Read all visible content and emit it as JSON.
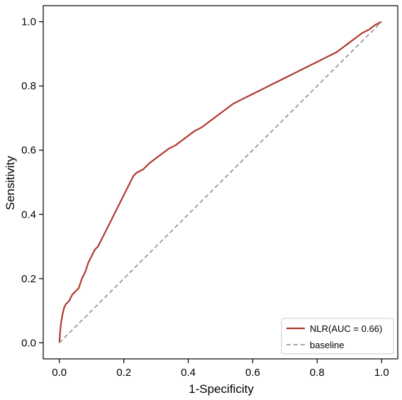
{
  "chart_data": {
    "type": "line",
    "xlabel": "1-Specificity",
    "ylabel": "Sensitivity",
    "xlim": [
      -0.05,
      1.05
    ],
    "ylim": [
      -0.05,
      1.05
    ],
    "xticks": [
      0.0,
      0.2,
      0.4,
      0.6,
      0.8,
      1.0
    ],
    "yticks": [
      0.0,
      0.2,
      0.4,
      0.6,
      0.8,
      1.0
    ],
    "xtick_labels": [
      "0.0",
      "0.2",
      "0.4",
      "0.6",
      "0.8",
      "1.0"
    ],
    "ytick_labels": [
      "0.0",
      "0.2",
      "0.4",
      "0.6",
      "0.8",
      "1.0"
    ],
    "grid": false,
    "legend_position": "bottom-right",
    "series": [
      {
        "name": "NLR(AUC = 0.66)",
        "color": "#b03a2e",
        "style": "solid",
        "x": [
          0.0,
          0.002,
          0.005,
          0.01,
          0.015,
          0.02,
          0.03,
          0.04,
          0.05,
          0.06,
          0.07,
          0.08,
          0.09,
          0.1,
          0.11,
          0.12,
          0.13,
          0.14,
          0.15,
          0.16,
          0.17,
          0.18,
          0.19,
          0.2,
          0.21,
          0.22,
          0.23,
          0.24,
          0.25,
          0.26,
          0.28,
          0.3,
          0.32,
          0.34,
          0.36,
          0.38,
          0.4,
          0.42,
          0.44,
          0.46,
          0.48,
          0.5,
          0.52,
          0.54,
          0.56,
          0.58,
          0.6,
          0.62,
          0.64,
          0.66,
          0.68,
          0.7,
          0.72,
          0.74,
          0.76,
          0.78,
          0.8,
          0.82,
          0.84,
          0.86,
          0.88,
          0.9,
          0.92,
          0.94,
          0.96,
          0.98,
          1.0
        ],
        "y": [
          0.0,
          0.03,
          0.06,
          0.09,
          0.11,
          0.12,
          0.13,
          0.15,
          0.16,
          0.17,
          0.2,
          0.22,
          0.25,
          0.27,
          0.29,
          0.3,
          0.32,
          0.34,
          0.36,
          0.38,
          0.4,
          0.42,
          0.44,
          0.46,
          0.48,
          0.5,
          0.52,
          0.53,
          0.535,
          0.54,
          0.56,
          0.575,
          0.59,
          0.605,
          0.615,
          0.63,
          0.645,
          0.66,
          0.67,
          0.685,
          0.7,
          0.715,
          0.73,
          0.745,
          0.755,
          0.765,
          0.775,
          0.785,
          0.795,
          0.805,
          0.815,
          0.825,
          0.835,
          0.845,
          0.855,
          0.865,
          0.875,
          0.885,
          0.895,
          0.905,
          0.92,
          0.935,
          0.95,
          0.965,
          0.975,
          0.99,
          1.0
        ]
      },
      {
        "name": "baseline",
        "color": "#999999",
        "style": "dashed",
        "x": [
          0.0,
          1.0
        ],
        "y": [
          0.0,
          1.0
        ]
      }
    ]
  }
}
